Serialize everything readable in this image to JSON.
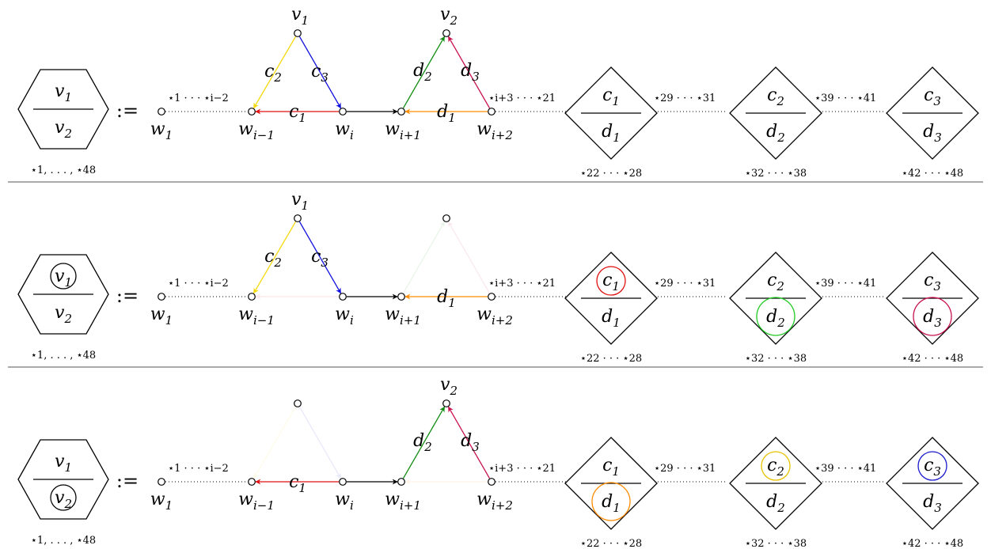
{
  "colors": {
    "yellow": "#f5d90a",
    "blue": "#1010dd",
    "red": "#e01010",
    "black": "#000000",
    "green": "#118c11",
    "orange": "#ff8c00",
    "purple": "#c8104c",
    "lime": "#22c922",
    "gold": "#e8c300",
    "navy": "#1a1acc"
  },
  "hexagon": {
    "top": "v",
    "top_sub": "1",
    "bottom": "v",
    "bottom_sub": "2",
    "stars": "⋆1, . . . , ⋆48"
  },
  "assign": ":=",
  "vertices": {
    "w1": {
      "name": "w",
      "sub": "1"
    },
    "wim1": {
      "name": "w",
      "sub": "i−1"
    },
    "wi": {
      "name": "w",
      "sub": "i"
    },
    "wip1": {
      "name": "w",
      "sub": "i+1"
    },
    "wip2": {
      "name": "w",
      "sub": "i+2"
    },
    "v1": {
      "name": "v",
      "sub": "1"
    },
    "v2": {
      "name": "v",
      "sub": "2"
    }
  },
  "edges": {
    "c1": {
      "name": "c",
      "sub": "1"
    },
    "c2": {
      "name": "c",
      "sub": "2"
    },
    "c3": {
      "name": "c",
      "sub": "3"
    },
    "d1": {
      "name": "d",
      "sub": "1"
    },
    "d2": {
      "name": "d",
      "sub": "2"
    },
    "d3": {
      "name": "d",
      "sub": "3"
    }
  },
  "star_labels": {
    "s1": "⋆1 · · · ⋆i−2",
    "s2": "⋆i+3 · · · ⋆21",
    "s3": "⋆29 · · · ⋆31",
    "s4": "⋆39 · · · ⋆41",
    "b1": "⋆22 · · · ⋆28",
    "b2": "⋆32 · · · ⋆38",
    "b3": "⋆42 · · · ⋆48"
  },
  "diamonds": [
    {
      "top": "c",
      "top_sub": "1",
      "bottom": "d",
      "bottom_sub": "1"
    },
    {
      "top": "c",
      "top_sub": "2",
      "bottom": "d",
      "bottom_sub": "2"
    },
    {
      "top": "c",
      "top_sub": "3",
      "bottom": "d",
      "bottom_sub": "3"
    }
  ],
  "rows": [
    {
      "hex_circle": null,
      "show_v1": true,
      "show_v2": true,
      "edges": {
        "c2": true,
        "c3": true,
        "c1": true,
        "d1": true,
        "d2": true,
        "d3": true
      },
      "diamond_circles": [
        null,
        null,
        null
      ]
    },
    {
      "hex_circle": "top",
      "show_v1": true,
      "show_v2": false,
      "edges": {
        "c2": true,
        "c3": true,
        "c1": false,
        "d1": true,
        "d2": false,
        "d3": false
      },
      "diamond_circles": [
        {
          "pos": "top",
          "color": "red"
        },
        {
          "pos": "bottom",
          "color": "lime"
        },
        {
          "pos": "bottom",
          "color": "purple"
        }
      ]
    },
    {
      "hex_circle": "bottom",
      "show_v1": false,
      "show_v2": true,
      "edges": {
        "c2": false,
        "c3": false,
        "c1": true,
        "d1": false,
        "d2": true,
        "d3": true
      },
      "diamond_circles": [
        {
          "pos": "bottom",
          "color": "orange"
        },
        {
          "pos": "top",
          "color": "gold"
        },
        {
          "pos": "top",
          "color": "navy"
        }
      ]
    }
  ]
}
